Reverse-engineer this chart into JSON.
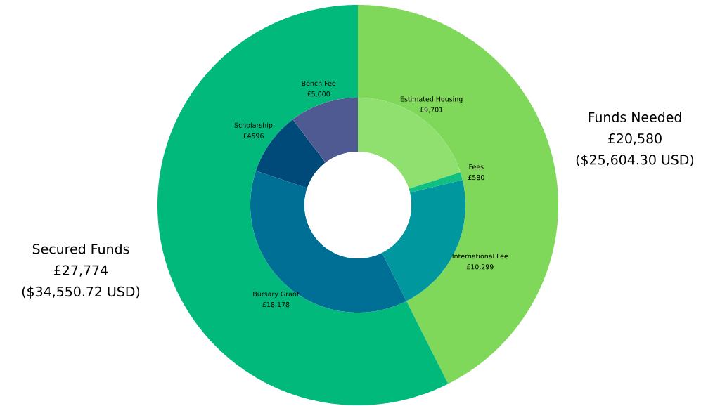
{
  "chart_data": [
    {
      "type": "donut",
      "categories": [
        "Funds Needed",
        "Secured Funds"
      ],
      "values": [
        20580,
        27774
      ],
      "colors": [
        "#80d85a",
        "#00b97a"
      ],
      "value_labels": [
        "£20,580",
        "£27,774"
      ],
      "annotations": [
        "($25,604.30 USD)",
        "($34,550.72 USD)"
      ]
    },
    {
      "type": "donut",
      "categories": [
        "Estimated Housing",
        "Fees",
        "International Fee",
        "Bursary Grant",
        "Scholarship",
        "Bench Fee"
      ],
      "values": [
        9701,
        580,
        10299,
        18178,
        4596,
        5000
      ],
      "colors": [
        "#90e070",
        "#10c080",
        "#00979f",
        "#006f95",
        "#004a7a",
        "#505a92"
      ],
      "value_labels": [
        "£9,701",
        "£580",
        "£10,299",
        "£18,178",
        "£4596",
        "£5,000"
      ]
    }
  ]
}
